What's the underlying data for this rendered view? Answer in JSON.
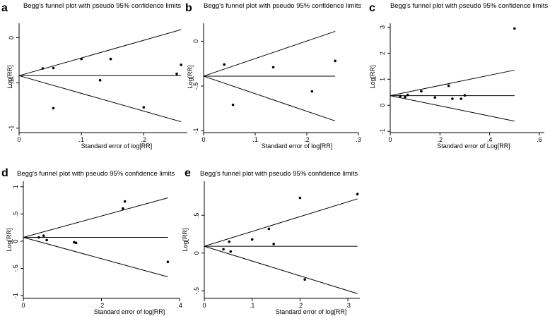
{
  "figure": {
    "background": "#ffffff",
    "ink": "#000000"
  },
  "chart_data": [
    {
      "letter": "a",
      "type": "scatter",
      "title": "Begg's funnel plot with pseudo 95% confidence limits",
      "xlabel": "Standard error of log[RR]",
      "ylabel": "Log[RR]",
      "xlim": [
        0,
        0.27
      ],
      "ylim": [
        -1.05,
        0.16
      ],
      "xticks": [
        {
          "v": 0,
          "l": "0"
        },
        {
          "v": 0.1,
          "l": ".1"
        },
        {
          "v": 0.2,
          "l": ".2"
        }
      ],
      "yticks": [
        {
          "v": -1,
          "l": "-1"
        },
        {
          "v": -0.5,
          "l": "-.5"
        },
        {
          "v": 0,
          "l": "0"
        }
      ],
      "pooled": -0.42,
      "limit_x": 0.26,
      "points": [
        [
          0.038,
          -0.34
        ],
        [
          0.055,
          -0.335
        ],
        [
          0.055,
          -0.78
        ],
        [
          0.1,
          -0.235
        ],
        [
          0.13,
          -0.47
        ],
        [
          0.147,
          -0.235
        ],
        [
          0.2,
          -0.77
        ],
        [
          0.253,
          -0.4
        ],
        [
          0.26,
          -0.3
        ]
      ]
    },
    {
      "letter": "b",
      "type": "scatter",
      "title": "Begg's funnel plot with pseudo 95% confidence limits",
      "xlabel": "Standard error of log[RR]",
      "ylabel": "Log[RR]",
      "xlim": [
        0,
        0.3
      ],
      "ylim": [
        -1.02,
        0.2
      ],
      "xticks": [
        {
          "v": 0,
          "l": "0"
        },
        {
          "v": 0.1,
          "l": ".1"
        },
        {
          "v": 0.2,
          "l": ".2"
        },
        {
          "v": 0.3,
          "l": ".3"
        }
      ],
      "yticks": [
        {
          "v": -1,
          "l": "-1"
        },
        {
          "v": -0.5,
          "l": "-.5"
        },
        {
          "v": 0,
          "l": "0"
        }
      ],
      "pooled": -0.39,
      "limit_x": 0.255,
      "points": [
        [
          0.04,
          -0.26
        ],
        [
          0.057,
          -0.71
        ],
        [
          0.135,
          -0.29
        ],
        [
          0.21,
          -0.56
        ],
        [
          0.255,
          -0.22
        ]
      ]
    },
    {
      "letter": "c",
      "type": "scatter",
      "title": "Begg's funnel plot with pseudo 95% confidence limits",
      "xlabel": "Standard error of Log[RR]",
      "ylabel": "Log[RR]",
      "xlim": [
        0,
        0.62
      ],
      "ylim": [
        -1.05,
        3.15
      ],
      "xticks": [
        {
          "v": 0,
          "l": "0"
        },
        {
          "v": 0.2,
          "l": ".2"
        },
        {
          "v": 0.4,
          "l": ".4"
        },
        {
          "v": 0.6,
          "l": ".6"
        }
      ],
      "yticks": [
        {
          "v": -1,
          "l": "-1"
        },
        {
          "v": 0,
          "l": "0"
        },
        {
          "v": 1,
          "l": "1"
        },
        {
          "v": 2,
          "l": "2"
        },
        {
          "v": 3,
          "l": "3"
        }
      ],
      "pooled": 0.37,
      "limit_x": 0.5,
      "points": [
        [
          0.04,
          0.35
        ],
        [
          0.06,
          0.32
        ],
        [
          0.07,
          0.4
        ],
        [
          0.125,
          0.54
        ],
        [
          0.18,
          0.3
        ],
        [
          0.235,
          0.75
        ],
        [
          0.25,
          0.25
        ],
        [
          0.285,
          0.25
        ],
        [
          0.3,
          0.38
        ],
        [
          0.5,
          2.95
        ]
      ]
    },
    {
      "letter": "d",
      "type": "scatter",
      "title": "Begg's funnel plot with pseudo 95% confidence limits",
      "xlabel": "Standard error of log[RR]",
      "ylabel": "Log[RR]",
      "xlim": [
        0,
        0.4
      ],
      "ylim": [
        -1.05,
        1.1
      ],
      "xticks": [
        {
          "v": 0,
          "l": "0"
        },
        {
          "v": 0.2,
          "l": ".2"
        },
        {
          "v": 0.4,
          "l": ".4"
        }
      ],
      "yticks": [
        {
          "v": -1,
          "l": "-1"
        },
        {
          "v": -0.5,
          "l": "-.5"
        },
        {
          "v": 0,
          "l": "0"
        },
        {
          "v": 0.5,
          "l": ".5"
        },
        {
          "v": 1,
          "l": "1"
        }
      ],
      "pooled": 0.07,
      "limit_x": 0.37,
      "points": [
        [
          0.04,
          0.07
        ],
        [
          0.052,
          0.1
        ],
        [
          0.06,
          0.02
        ],
        [
          0.13,
          -0.02
        ],
        [
          0.135,
          -0.03
        ],
        [
          0.255,
          0.6
        ],
        [
          0.26,
          0.73
        ],
        [
          0.37,
          -0.38
        ]
      ]
    },
    {
      "letter": "e",
      "type": "scatter",
      "title": "Begg's funnel plot with pseudo 95% confidence limits",
      "xlabel": "Standard error of log[RR]",
      "ylabel": "Log[RR]",
      "xlim": [
        0,
        0.325
      ],
      "ylim": [
        -0.6,
        0.95
      ],
      "xticks": [
        {
          "v": 0,
          "l": "0"
        },
        {
          "v": 0.1,
          "l": ".1"
        },
        {
          "v": 0.2,
          "l": ".2"
        },
        {
          "v": 0.3,
          "l": ".3"
        }
      ],
      "yticks": [
        {
          "v": -0.5,
          "l": "-.5"
        },
        {
          "v": 0,
          "l": "0"
        },
        {
          "v": 0.5,
          "l": ".5"
        }
      ],
      "pooled": 0.09,
      "limit_x": 0.32,
      "points": [
        [
          0.04,
          0.05
        ],
        [
          0.052,
          0.15
        ],
        [
          0.055,
          0.02
        ],
        [
          0.1,
          0.18
        ],
        [
          0.135,
          0.32
        ],
        [
          0.145,
          0.12
        ],
        [
          0.2,
          0.73
        ],
        [
          0.21,
          -0.35
        ],
        [
          0.32,
          0.78
        ]
      ]
    }
  ]
}
